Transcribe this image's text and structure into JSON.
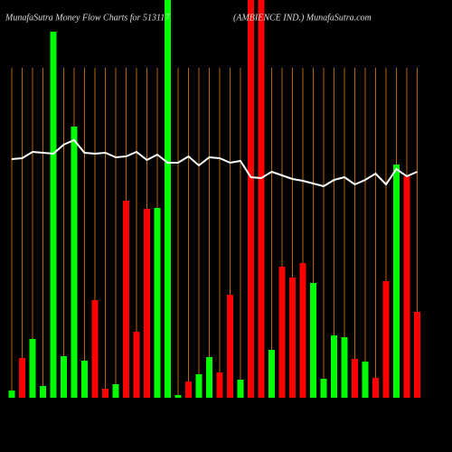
{
  "chart_data": {
    "type": "bar",
    "title": "MunafaSutra  Money Flow  Charts for 513117",
    "subtitle": "(AMBIENCE IND.) MunafaSutra.com",
    "categories": [
      null,
      null,
      null,
      null,
      null,
      null,
      null,
      null,
      null,
      null,
      null,
      null,
      null,
      null,
      null,
      null,
      null,
      null,
      null,
      null,
      null,
      null,
      null,
      null,
      null,
      null,
      null,
      null,
      null,
      null,
      null,
      null,
      null,
      null,
      null,
      null,
      null,
      null,
      null,
      null
    ],
    "values": [
      8,
      44,
      65,
      13,
      405,
      46,
      300,
      41,
      108,
      10,
      15,
      218,
      73,
      209,
      210,
      440,
      3,
      18,
      26,
      45,
      28,
      114,
      20,
      440,
      440,
      53,
      145,
      133,
      149,
      127,
      21,
      69,
      67,
      43,
      40,
      22,
      129,
      258,
      245,
      95
    ],
    "colors": [
      "#00ff00",
      "#ff0000",
      "#00ff00",
      "#00ff00",
      "#00ff00",
      "#00ff00",
      "#00ff00",
      "#00ff00",
      "#ff0000",
      "#ff0000",
      "#00ff00",
      "#ff0000",
      "#ff0000",
      "#ff0000",
      "#00ff00",
      "#00ff00",
      "#00ff00",
      "#ff0000",
      "#00ff00",
      "#00ff00",
      "#ff0000",
      "#ff0000",
      "#00ff00",
      "#ff0000",
      "#ff0000",
      "#00ff00",
      "#ff0000",
      "#ff0000",
      "#ff0000",
      "#00ff00",
      "#00ff00",
      "#00ff00",
      "#00ff00",
      "#ff0000",
      "#00ff00",
      "#ff0000",
      "#ff0000",
      "#00ff00",
      "#ff0000",
      "#ff0000"
    ],
    "line": {
      "color": "#ffffff",
      "values": [
        264,
        265,
        272,
        271,
        270,
        280,
        285,
        271,
        270,
        271,
        266,
        267,
        272,
        263,
        269,
        260,
        260,
        267,
        257,
        266,
        265,
        260,
        262,
        244,
        243,
        250,
        246,
        242,
        240,
        237,
        234,
        241,
        244,
        236,
        241,
        248,
        236,
        253,
        245,
        250
      ]
    },
    "ylim": [
      0,
      440
    ],
    "grid_color": "#b8660b"
  }
}
